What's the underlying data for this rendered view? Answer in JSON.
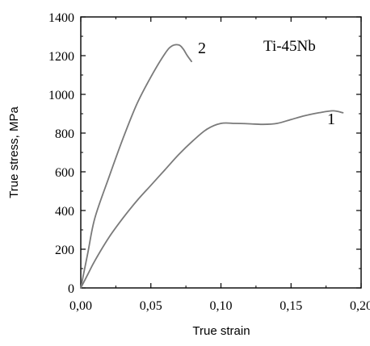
{
  "chart_data": {
    "type": "line",
    "title": "",
    "xlabel": "True strain",
    "ylabel": "True stress, MPa",
    "xlim": [
      0,
      0.2
    ],
    "ylim": [
      0,
      1400
    ],
    "x_ticks": [
      0,
      0.05,
      0.1,
      0.15,
      0.2
    ],
    "x_tick_labels": [
      "0,00",
      "0,05",
      "0,10",
      "0,15",
      "0,20"
    ],
    "y_ticks": [
      0,
      200,
      400,
      600,
      800,
      1000,
      1200,
      1400
    ],
    "y_tick_labels": [
      "0",
      "200",
      "400",
      "600",
      "800",
      "1000",
      "1200",
      "1400"
    ],
    "grid": false,
    "annotation": "Ti-45Nb",
    "series": [
      {
        "name": "1",
        "color": "#7a7a7a",
        "x": [
          0,
          0.005,
          0.01,
          0.02,
          0.03,
          0.04,
          0.05,
          0.06,
          0.07,
          0.08,
          0.09,
          0.1,
          0.11,
          0.12,
          0.13,
          0.14,
          0.15,
          0.16,
          0.17,
          0.18,
          0.187
        ],
        "y": [
          0,
          70,
          140,
          260,
          360,
          450,
          530,
          610,
          690,
          760,
          820,
          850,
          850,
          848,
          845,
          850,
          870,
          890,
          905,
          915,
          905
        ]
      },
      {
        "name": "2",
        "color": "#7a7a7a",
        "x": [
          0,
          0.005,
          0.01,
          0.02,
          0.03,
          0.04,
          0.05,
          0.06,
          0.065,
          0.07,
          0.073,
          0.076,
          0.079
        ],
        "y": [
          0,
          180,
          360,
          570,
          770,
          950,
          1090,
          1210,
          1250,
          1255,
          1235,
          1200,
          1170
        ]
      }
    ]
  }
}
